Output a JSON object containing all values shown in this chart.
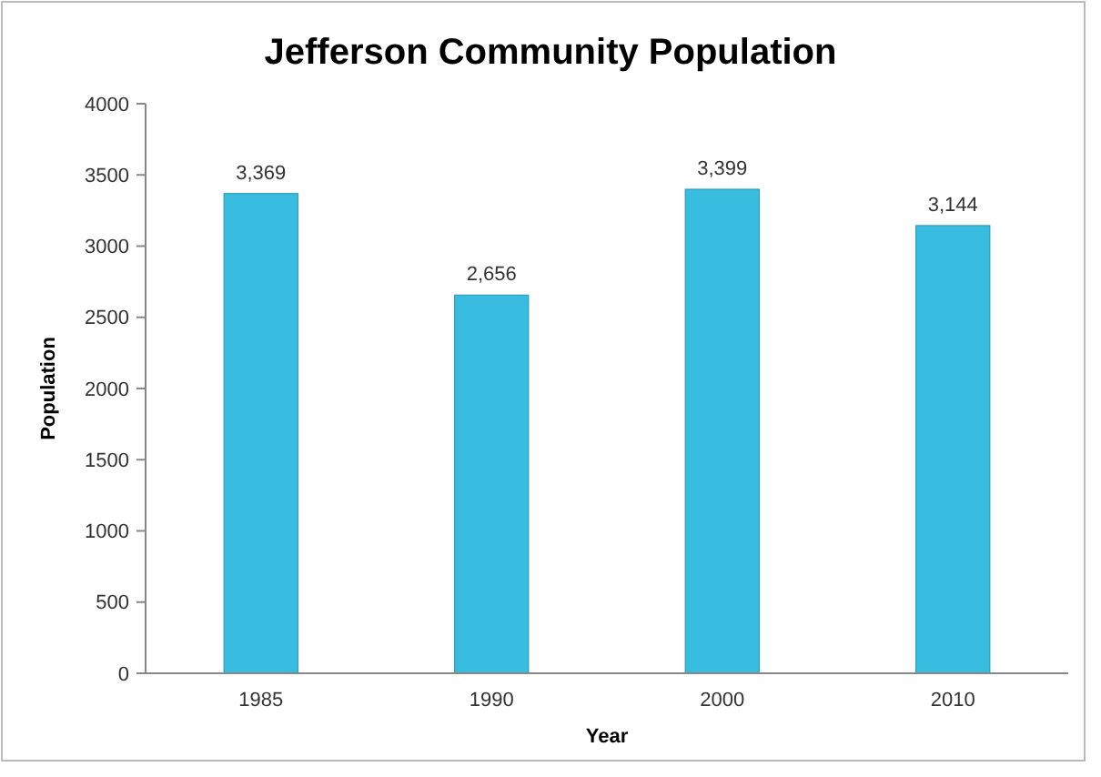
{
  "chart_data": {
    "type": "bar",
    "title": "Jefferson Community Population",
    "xlabel": "Year",
    "ylabel": "Population",
    "categories": [
      "1985",
      "1990",
      "2000",
      "2010"
    ],
    "values": [
      3369,
      2656,
      3399,
      3144
    ],
    "value_labels": [
      "3,369",
      "2,656",
      "3,399",
      "3,144"
    ],
    "color": "#38bde0",
    "ylim": [
      0,
      4000
    ],
    "yticks": [
      0,
      500,
      1000,
      1500,
      2000,
      2500,
      3000,
      3500,
      4000
    ],
    "grid": false
  }
}
